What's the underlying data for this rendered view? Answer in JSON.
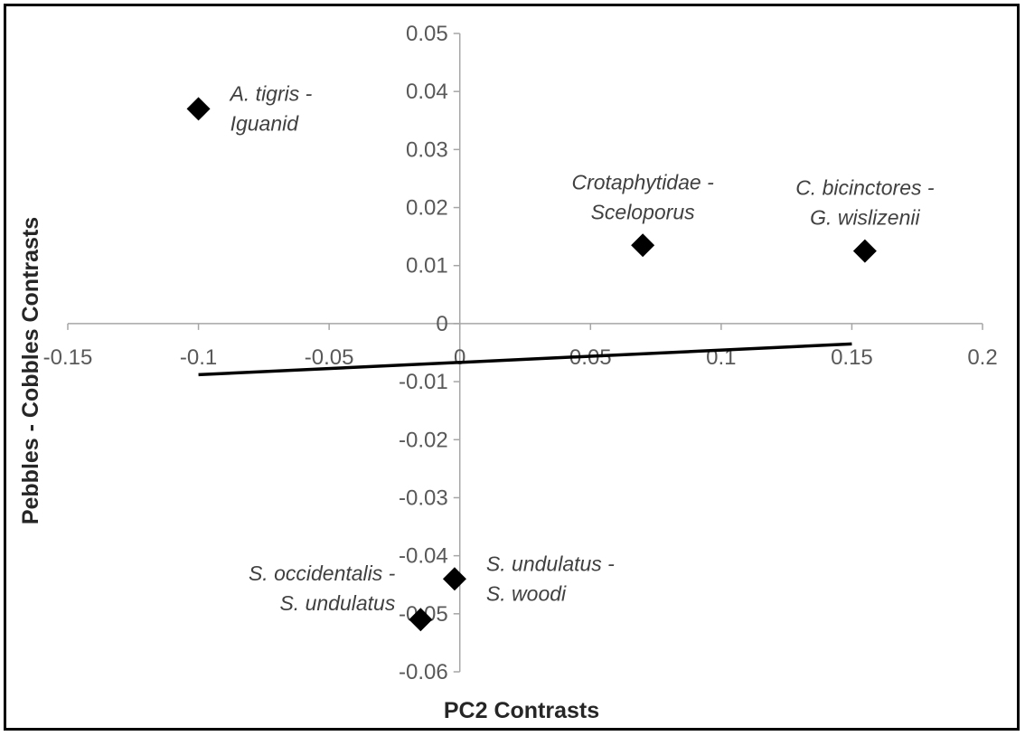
{
  "chart_data": {
    "type": "scatter",
    "xlabel": "PC2 Contrasts",
    "ylabel": "Pebbles - Cobbles Contrasts",
    "xlim": [
      -0.15,
      0.2
    ],
    "ylim": [
      -0.06,
      0.05
    ],
    "x_ticks": [
      "-0.15",
      "-0.1",
      "-0.05",
      "0",
      "0.05",
      "0.1",
      "0.15",
      "0.2"
    ],
    "y_ticks": [
      "0.05",
      "0.04",
      "0.03",
      "0.02",
      "0.01",
      "0",
      "-0.01",
      "-0.02",
      "-0.03",
      "-0.04",
      "-0.05",
      "-0.06"
    ],
    "points": [
      {
        "x": -0.1,
        "y": 0.037,
        "label_lines": [
          "A. tigris -",
          "Iguanid"
        ],
        "label_side": "right"
      },
      {
        "x": 0.07,
        "y": 0.0135,
        "label_lines": [
          "Crotaphytidae -",
          "Sceloporus"
        ],
        "label_side": "above"
      },
      {
        "x": 0.155,
        "y": 0.0125,
        "label_lines": [
          "C. bicinctores -",
          "G. wislizenii"
        ],
        "label_side": "above"
      },
      {
        "x": -0.002,
        "y": -0.044,
        "label_lines": [
          "S. undulatus -",
          "S. woodi"
        ],
        "label_side": "right"
      },
      {
        "x": -0.015,
        "y": -0.051,
        "label_lines": [
          "S. occidentalis -",
          "S. undulatus"
        ],
        "label_side": "left"
      }
    ],
    "trendline": {
      "x": [
        -0.1,
        0.15
      ],
      "y": [
        -0.0088,
        -0.0035
      ]
    },
    "marker": "diamond",
    "marker_color": "#000000",
    "line_color": "#000000",
    "axis_color": "#a6a6a6",
    "grid": false,
    "legend": "none"
  }
}
